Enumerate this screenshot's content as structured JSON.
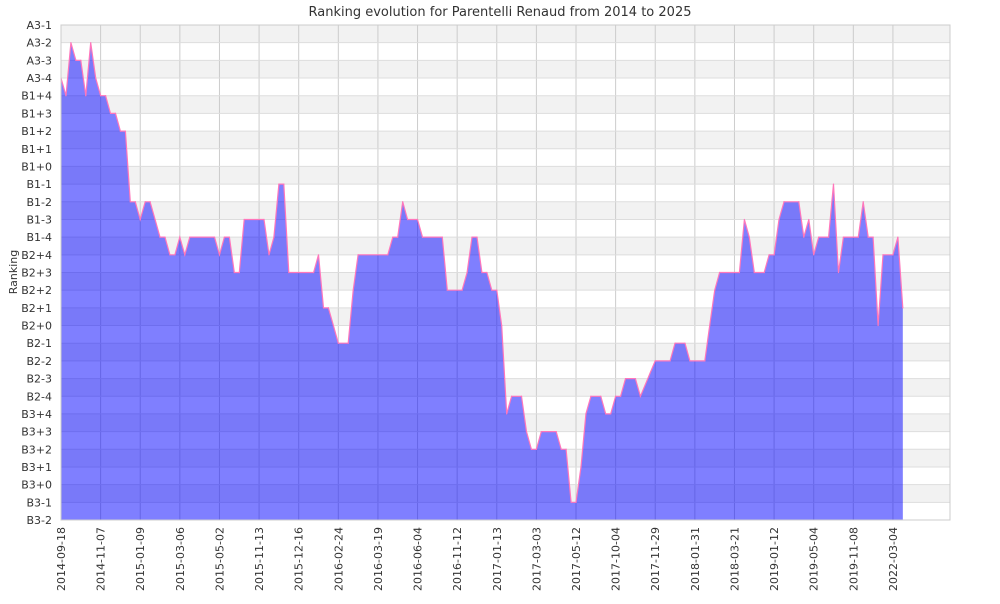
{
  "chart_data": {
    "type": "area",
    "title": "Ranking evolution for Parentelli Renaud from 2014 to 2025",
    "xlabel": "",
    "ylabel": "Ranking",
    "grid": true,
    "y_categories": [
      "B3-2",
      "B3-1",
      "B3+0",
      "B3+1",
      "B3+2",
      "B3+3",
      "B3+4",
      "B2-4",
      "B2-3",
      "B2-2",
      "B2-1",
      "B2+0",
      "B2+1",
      "B2+2",
      "B2+3",
      "B2+4",
      "B1-4",
      "B1-3",
      "B1-2",
      "B1-1",
      "B1+0",
      "B1+1",
      "B1+2",
      "B1+3",
      "B1+4",
      "A3-4",
      "A3-3",
      "A3-2",
      "A3-1"
    ],
    "x_count": 171,
    "x_ticks": [
      {
        "index": 0,
        "label": "2014-09-18"
      },
      {
        "index": 8,
        "label": "2014-11-07"
      },
      {
        "index": 16,
        "label": "2015-01-09"
      },
      {
        "index": 24,
        "label": "2015-03-06"
      },
      {
        "index": 32,
        "label": "2015-05-02"
      },
      {
        "index": 40,
        "label": "2015-11-13"
      },
      {
        "index": 48,
        "label": "2015-12-16"
      },
      {
        "index": 56,
        "label": "2016-02-24"
      },
      {
        "index": 64,
        "label": "2016-03-19"
      },
      {
        "index": 72,
        "label": "2016-06-04"
      },
      {
        "index": 80,
        "label": "2016-11-12"
      },
      {
        "index": 88,
        "label": "2017-01-13"
      },
      {
        "index": 96,
        "label": "2017-03-03"
      },
      {
        "index": 104,
        "label": "2017-05-12"
      },
      {
        "index": 112,
        "label": "2017-10-04"
      },
      {
        "index": 120,
        "label": "2017-11-29"
      },
      {
        "index": 128,
        "label": "2018-01-31"
      },
      {
        "index": 136,
        "label": "2018-03-21"
      },
      {
        "index": 144,
        "label": "2019-01-12"
      },
      {
        "index": 152,
        "label": "2019-05-04"
      },
      {
        "index": 160,
        "label": "2019-11-08"
      },
      {
        "index": 168,
        "label": "2022-03-04"
      }
    ],
    "series": [
      {
        "name": "Ranking",
        "color_fill": "#0000ff",
        "color_line": "#ff66aa",
        "points": [
          [
            0,
            25
          ],
          [
            1,
            24
          ],
          [
            2,
            27
          ],
          [
            3,
            26
          ],
          [
            4,
            26
          ],
          [
            5,
            24
          ],
          [
            6,
            27
          ],
          [
            7,
            25
          ],
          [
            8,
            24
          ],
          [
            9,
            24
          ],
          [
            10,
            23
          ],
          [
            11,
            23
          ],
          [
            12,
            22
          ],
          [
            13,
            22
          ],
          [
            14,
            18
          ],
          [
            15,
            18
          ],
          [
            16,
            17
          ],
          [
            17,
            18
          ],
          [
            18,
            18
          ],
          [
            19,
            17
          ],
          [
            20,
            16
          ],
          [
            21,
            16
          ],
          [
            22,
            15
          ],
          [
            23,
            15
          ],
          [
            24,
            16
          ],
          [
            25,
            15
          ],
          [
            26,
            16
          ],
          [
            31,
            16
          ],
          [
            32,
            15
          ],
          [
            33,
            16
          ],
          [
            34,
            16
          ],
          [
            35,
            14
          ],
          [
            36,
            14
          ],
          [
            37,
            17
          ],
          [
            41,
            17
          ],
          [
            42,
            15
          ],
          [
            43,
            16
          ],
          [
            44,
            19
          ],
          [
            45,
            19
          ],
          [
            46,
            14
          ],
          [
            51,
            14
          ],
          [
            52,
            15
          ],
          [
            53,
            12
          ],
          [
            54,
            12
          ],
          [
            55,
            11
          ],
          [
            56,
            10
          ],
          [
            58,
            10
          ],
          [
            59,
            13
          ],
          [
            60,
            15
          ],
          [
            66,
            15
          ],
          [
            67,
            16
          ],
          [
            68,
            16
          ],
          [
            69,
            18
          ],
          [
            70,
            17
          ],
          [
            72,
            17
          ],
          [
            73,
            16
          ],
          [
            77,
            16
          ],
          [
            78,
            13
          ],
          [
            81,
            13
          ],
          [
            82,
            14
          ],
          [
            83,
            16
          ],
          [
            84,
            16
          ],
          [
            85,
            14
          ],
          [
            86,
            14
          ],
          [
            87,
            13
          ],
          [
            88,
            13
          ],
          [
            89,
            11
          ],
          [
            90,
            6
          ],
          [
            91,
            7
          ],
          [
            93,
            7
          ],
          [
            94,
            5
          ],
          [
            95,
            4
          ],
          [
            96,
            4
          ],
          [
            97,
            5
          ],
          [
            100,
            5
          ],
          [
            101,
            4
          ],
          [
            102,
            4
          ],
          [
            103,
            1
          ],
          [
            104,
            1
          ],
          [
            105,
            3
          ],
          [
            106,
            6
          ],
          [
            107,
            7
          ],
          [
            109,
            7
          ],
          [
            110,
            6
          ],
          [
            111,
            6
          ],
          [
            112,
            7
          ],
          [
            113,
            7
          ],
          [
            114,
            8
          ],
          [
            116,
            8
          ],
          [
            117,
            7
          ],
          [
            120,
            9
          ],
          [
            123,
            9
          ],
          [
            124,
            10
          ],
          [
            126,
            10
          ],
          [
            127,
            9
          ],
          [
            130,
            9
          ],
          [
            131,
            11
          ],
          [
            132,
            13
          ],
          [
            133,
            14
          ],
          [
            137,
            14
          ],
          [
            138,
            17
          ],
          [
            139,
            16
          ],
          [
            140,
            14
          ],
          [
            142,
            14
          ],
          [
            143,
            15
          ],
          [
            144,
            15
          ],
          [
            145,
            17
          ],
          [
            146,
            18
          ],
          [
            149,
            18
          ],
          [
            150,
            16
          ],
          [
            151,
            17
          ],
          [
            152,
            15
          ],
          [
            153,
            16
          ],
          [
            155,
            16
          ],
          [
            156,
            19
          ],
          [
            157,
            14
          ],
          [
            158,
            16
          ],
          [
            161,
            16
          ],
          [
            162,
            18
          ],
          [
            163,
            16
          ],
          [
            164,
            16
          ],
          [
            165,
            11
          ],
          [
            166,
            15
          ],
          [
            168,
            15
          ],
          [
            169,
            16
          ],
          [
            170,
            12
          ]
        ]
      }
    ]
  }
}
